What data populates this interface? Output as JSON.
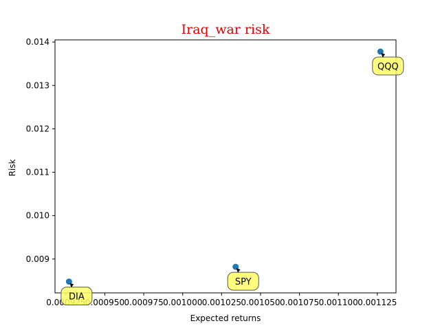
{
  "chart_data": {
    "type": "scatter",
    "title": "Iraq_war risk",
    "title_color": "#e00000",
    "xlabel": "Expected returns",
    "ylabel": "Risk",
    "xlim": [
      0.000918,
      0.001137
    ],
    "ylim": [
      0.00822,
      0.01405
    ],
    "x_ticks": [
      {
        "value": 0.000925,
        "label": "0.000925"
      },
      {
        "value": 0.00095,
        "label": "0.000950"
      },
      {
        "value": 0.000975,
        "label": "0.000975"
      },
      {
        "value": 0.001,
        "label": "0.001000"
      },
      {
        "value": 0.001025,
        "label": "0.001025"
      },
      {
        "value": 0.00105,
        "label": "0.001050"
      },
      {
        "value": 0.001075,
        "label": "0.001075"
      },
      {
        "value": 0.0011,
        "label": "0.001100"
      },
      {
        "value": 0.001125,
        "label": "0.001125"
      }
    ],
    "y_ticks": [
      {
        "value": 0.009,
        "label": "0.009"
      },
      {
        "value": 0.01,
        "label": "0.010"
      },
      {
        "value": 0.011,
        "label": "0.011"
      },
      {
        "value": 0.012,
        "label": "0.012"
      },
      {
        "value": 0.013,
        "label": "0.013"
      },
      {
        "value": 0.014,
        "label": "0.014"
      }
    ],
    "points": [
      {
        "label": "DIA",
        "x": 0.000927,
        "y": 0.00848
      },
      {
        "label": "SPY",
        "x": 0.001034,
        "y": 0.00882
      },
      {
        "label": "QQQ",
        "x": 0.001127,
        "y": 0.01378
      }
    ],
    "point_color": "#1f77b4",
    "annotation_fill": "#ffff66",
    "grid": false
  }
}
